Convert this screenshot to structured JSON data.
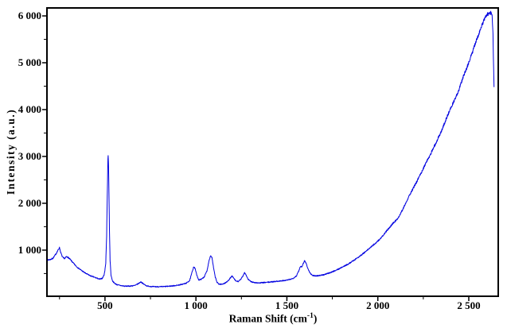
{
  "figure": {
    "background": "#ffffff",
    "frame_color": "#000000"
  },
  "chart_data": {
    "type": "line",
    "title": "",
    "xlabel": {
      "prefix": "Raman Shift (cm",
      "superscript": "-1",
      "suffix": ")"
    },
    "ylabel": "Intensity (a.u.)",
    "grid": false,
    "legend": null,
    "x_axis": {
      "min": 181,
      "max": 2662,
      "major_ticks": [
        {
          "value": 500,
          "label": "500"
        },
        {
          "value": 1000,
          "label": "1 000"
        },
        {
          "value": 1500,
          "label": "1 500"
        },
        {
          "value": 2000,
          "label": "2 000"
        },
        {
          "value": 2500,
          "label": "2 500"
        }
      ],
      "minor_ticks": [
        250,
        750,
        1250,
        1750,
        2250
      ]
    },
    "y_axis": {
      "min": 15,
      "max": 6170,
      "major_ticks": [
        {
          "value": 1000,
          "label": "1 000"
        },
        {
          "value": 2000,
          "label": "2 000"
        },
        {
          "value": 3000,
          "label": "3 000"
        },
        {
          "value": 4000,
          "label": "4 000"
        },
        {
          "value": 5000,
          "label": "5 000"
        },
        {
          "value": 6000,
          "label": "6 000"
        }
      ],
      "minor_ticks": [
        500,
        1500,
        2500,
        3500,
        4500,
        5500
      ]
    },
    "noise": {
      "base": 9,
      "proportional": 0.005,
      "seed": 7
    },
    "series": [
      {
        "name": "raman-spectrum",
        "color": "#0000E0",
        "points": [
          [
            185,
            790
          ],
          [
            200,
            800
          ],
          [
            214,
            825
          ],
          [
            228,
            905
          ],
          [
            240,
            985
          ],
          [
            250,
            1055
          ],
          [
            256,
            960
          ],
          [
            263,
            880
          ],
          [
            271,
            830
          ],
          [
            279,
            822
          ],
          [
            289,
            862
          ],
          [
            299,
            840
          ],
          [
            311,
            790
          ],
          [
            326,
            722
          ],
          [
            346,
            640
          ],
          [
            366,
            580
          ],
          [
            391,
            510
          ],
          [
            421,
            450
          ],
          [
            451,
            408
          ],
          [
            471,
            378
          ],
          [
            486,
            400
          ],
          [
            496,
            480
          ],
          [
            504,
            700
          ],
          [
            509,
            1300
          ],
          [
            514,
            2500
          ],
          [
            517,
            3085
          ],
          [
            520,
            2750
          ],
          [
            524,
            1550
          ],
          [
            528,
            790
          ],
          [
            533,
            470
          ],
          [
            541,
            345
          ],
          [
            551,
            298
          ],
          [
            566,
            262
          ],
          [
            586,
            243
          ],
          [
            611,
            230
          ],
          [
            641,
            234
          ],
          [
            666,
            246
          ],
          [
            686,
            292
          ],
          [
            698,
            322
          ],
          [
            711,
            278
          ],
          [
            731,
            234
          ],
          [
            761,
            220
          ],
          [
            801,
            218
          ],
          [
            841,
            226
          ],
          [
            881,
            240
          ],
          [
            916,
            262
          ],
          [
            946,
            292
          ],
          [
            966,
            352
          ],
          [
            978,
            520
          ],
          [
            988,
            650
          ],
          [
            996,
            598
          ],
          [
            1006,
            450
          ],
          [
            1016,
            362
          ],
          [
            1031,
            382
          ],
          [
            1046,
            432
          ],
          [
            1061,
            560
          ],
          [
            1072,
            780
          ],
          [
            1080,
            882
          ],
          [
            1088,
            848
          ],
          [
            1096,
            640
          ],
          [
            1106,
            428
          ],
          [
            1116,
            310
          ],
          [
            1126,
            276
          ],
          [
            1141,
            270
          ],
          [
            1156,
            290
          ],
          [
            1171,
            322
          ],
          [
            1186,
            390
          ],
          [
            1198,
            447
          ],
          [
            1208,
            400
          ],
          [
            1219,
            340
          ],
          [
            1233,
            330
          ],
          [
            1246,
            372
          ],
          [
            1259,
            452
          ],
          [
            1267,
            525
          ],
          [
            1276,
            468
          ],
          [
            1286,
            380
          ],
          [
            1301,
            330
          ],
          [
            1321,
            306
          ],
          [
            1346,
            300
          ],
          [
            1371,
            306
          ],
          [
            1401,
            316
          ],
          [
            1431,
            330
          ],
          [
            1461,
            340
          ],
          [
            1491,
            352
          ],
          [
            1516,
            372
          ],
          [
            1536,
            402
          ],
          [
            1553,
            452
          ],
          [
            1566,
            562
          ],
          [
            1575,
            662
          ],
          [
            1581,
            640
          ],
          [
            1589,
            702
          ],
          [
            1597,
            778
          ],
          [
            1605,
            728
          ],
          [
            1616,
            600
          ],
          [
            1629,
            500
          ],
          [
            1641,
            462
          ],
          [
            1656,
            450
          ],
          [
            1676,
            456
          ],
          [
            1701,
            472
          ],
          [
            1726,
            502
          ],
          [
            1751,
            540
          ],
          [
            1781,
            590
          ],
          [
            1811,
            650
          ],
          [
            1841,
            712
          ],
          [
            1871,
            790
          ],
          [
            1901,
            872
          ],
          [
            1931,
            962
          ],
          [
            1961,
            1062
          ],
          [
            1991,
            1160
          ],
          [
            2021,
            1272
          ],
          [
            2051,
            1422
          ],
          [
            2081,
            1562
          ],
          [
            2111,
            1682
          ],
          [
            2141,
            1902
          ],
          [
            2171,
            2152
          ],
          [
            2201,
            2362
          ],
          [
            2231,
            2592
          ],
          [
            2261,
            2832
          ],
          [
            2291,
            3062
          ],
          [
            2321,
            3302
          ],
          [
            2351,
            3552
          ],
          [
            2381,
            3852
          ],
          [
            2411,
            4122
          ],
          [
            2441,
            4372
          ],
          [
            2471,
            4712
          ],
          [
            2501,
            5012
          ],
          [
            2531,
            5352
          ],
          [
            2561,
            5682
          ],
          [
            2581,
            5892
          ],
          [
            2599,
            6012
          ],
          [
            2612,
            6072
          ],
          [
            2622,
            6062
          ],
          [
            2629,
            5982
          ],
          [
            2633,
            5602
          ],
          [
            2636,
            5002
          ],
          [
            2638,
            4602
          ],
          [
            2639,
            4482
          ]
        ]
      }
    ]
  }
}
